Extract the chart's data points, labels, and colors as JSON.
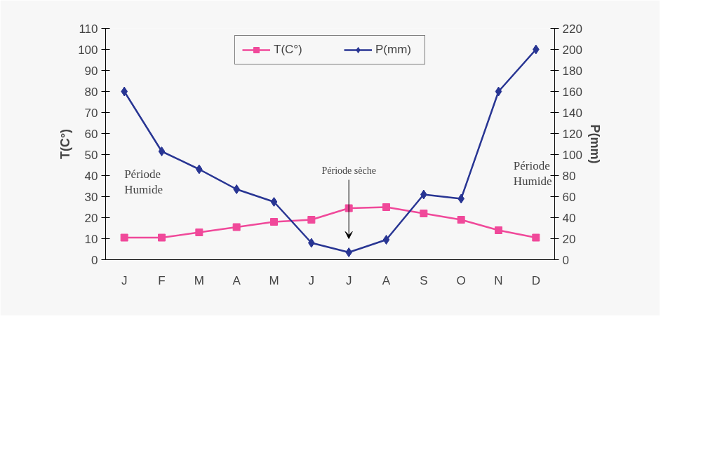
{
  "chart_data": {
    "type": "line",
    "ylabel": "T(C°)",
    "y2label": "P(mm)",
    "categories": [
      "J",
      "F",
      "M",
      "A",
      "M",
      "J",
      "J",
      "A",
      "S",
      "O",
      "N",
      "D"
    ],
    "series": [
      {
        "name": "T(C°)",
        "color": "#f0499a",
        "marker": "square",
        "values": [
          10.5,
          10.5,
          13,
          15.5,
          18,
          19,
          24.5,
          25,
          22,
          19,
          14,
          10.5
        ]
      },
      {
        "name": "P(mm)",
        "color": "#283593",
        "marker": "diamond",
        "axis": "y2",
        "values": [
          160,
          103,
          86,
          67,
          55,
          16,
          7,
          19,
          62,
          58,
          160,
          200
        ]
      }
    ],
    "ylim": [
      0,
      110
    ],
    "yticks": [
      0,
      10,
      20,
      30,
      40,
      50,
      60,
      70,
      80,
      90,
      100,
      110
    ],
    "y2lim": [
      0,
      220
    ],
    "y2ticks": [
      0,
      20,
      40,
      60,
      80,
      100,
      120,
      140,
      160,
      180,
      200,
      220
    ],
    "annotations": [
      "Période Humide",
      "Période sèche",
      "Période Humide"
    ],
    "legend": "top",
    "grid": false
  }
}
